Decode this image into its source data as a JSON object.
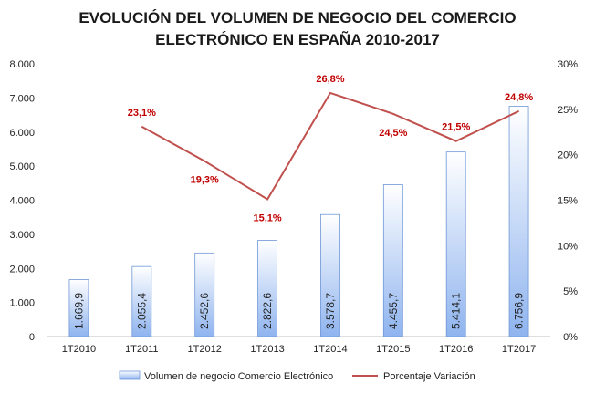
{
  "chart_data": {
    "type": "bar",
    "title_line1": "EVOLUCIÓN DEL VOLUMEN DE NEGOCIO DEL COMERCIO",
    "title_line2": "ELECTRÓNICO EN ESPAÑA 2010-2017",
    "categories": [
      "1T2010",
      "1T2011",
      "1T2012",
      "1T2013",
      "1T2014",
      "1T2015",
      "1T2016",
      "1T2017"
    ],
    "series": [
      {
        "name": "Volumen de negocio Comercio Electrónico",
        "kind": "bar",
        "axis": "left",
        "values": [
          1669.9,
          2055.4,
          2452.6,
          2822.6,
          3578.7,
          4455.7,
          5414.1,
          6756.9
        ],
        "labels": [
          "1.669,9",
          "2.055,4",
          "2.452,6",
          "2.822,6",
          "3.578,7",
          "4.455,7",
          "5.414,1",
          "6.756,9"
        ],
        "color": "#8fb4ef"
      },
      {
        "name": "Porcentaje Variación",
        "kind": "line",
        "axis": "right",
        "values": [
          null,
          23.1,
          19.3,
          15.1,
          26.8,
          24.5,
          21.5,
          24.8
        ],
        "labels": [
          "",
          "23,1%",
          "19,3%",
          "15,1%",
          "26,8%",
          "24,5%",
          "21,5%",
          "24,8%"
        ],
        "color": "#c0504d"
      }
    ],
    "y_left": {
      "min": 0,
      "max": 8000,
      "ticks": [
        0,
        1000,
        2000,
        3000,
        4000,
        5000,
        6000,
        7000,
        8000
      ],
      "tick_labels": [
        "0",
        "1.000",
        "2.000",
        "3.000",
        "4.000",
        "5.000",
        "6.000",
        "7.000",
        "8.000"
      ]
    },
    "y_right": {
      "min": 0,
      "max": 30,
      "ticks": [
        0,
        5,
        10,
        15,
        20,
        25,
        30
      ],
      "tick_labels": [
        "0%",
        "5%",
        "10%",
        "15%",
        "20%",
        "25%",
        "30%"
      ]
    },
    "grid": false,
    "legend_position": "bottom",
    "label_color": "#c00000"
  }
}
